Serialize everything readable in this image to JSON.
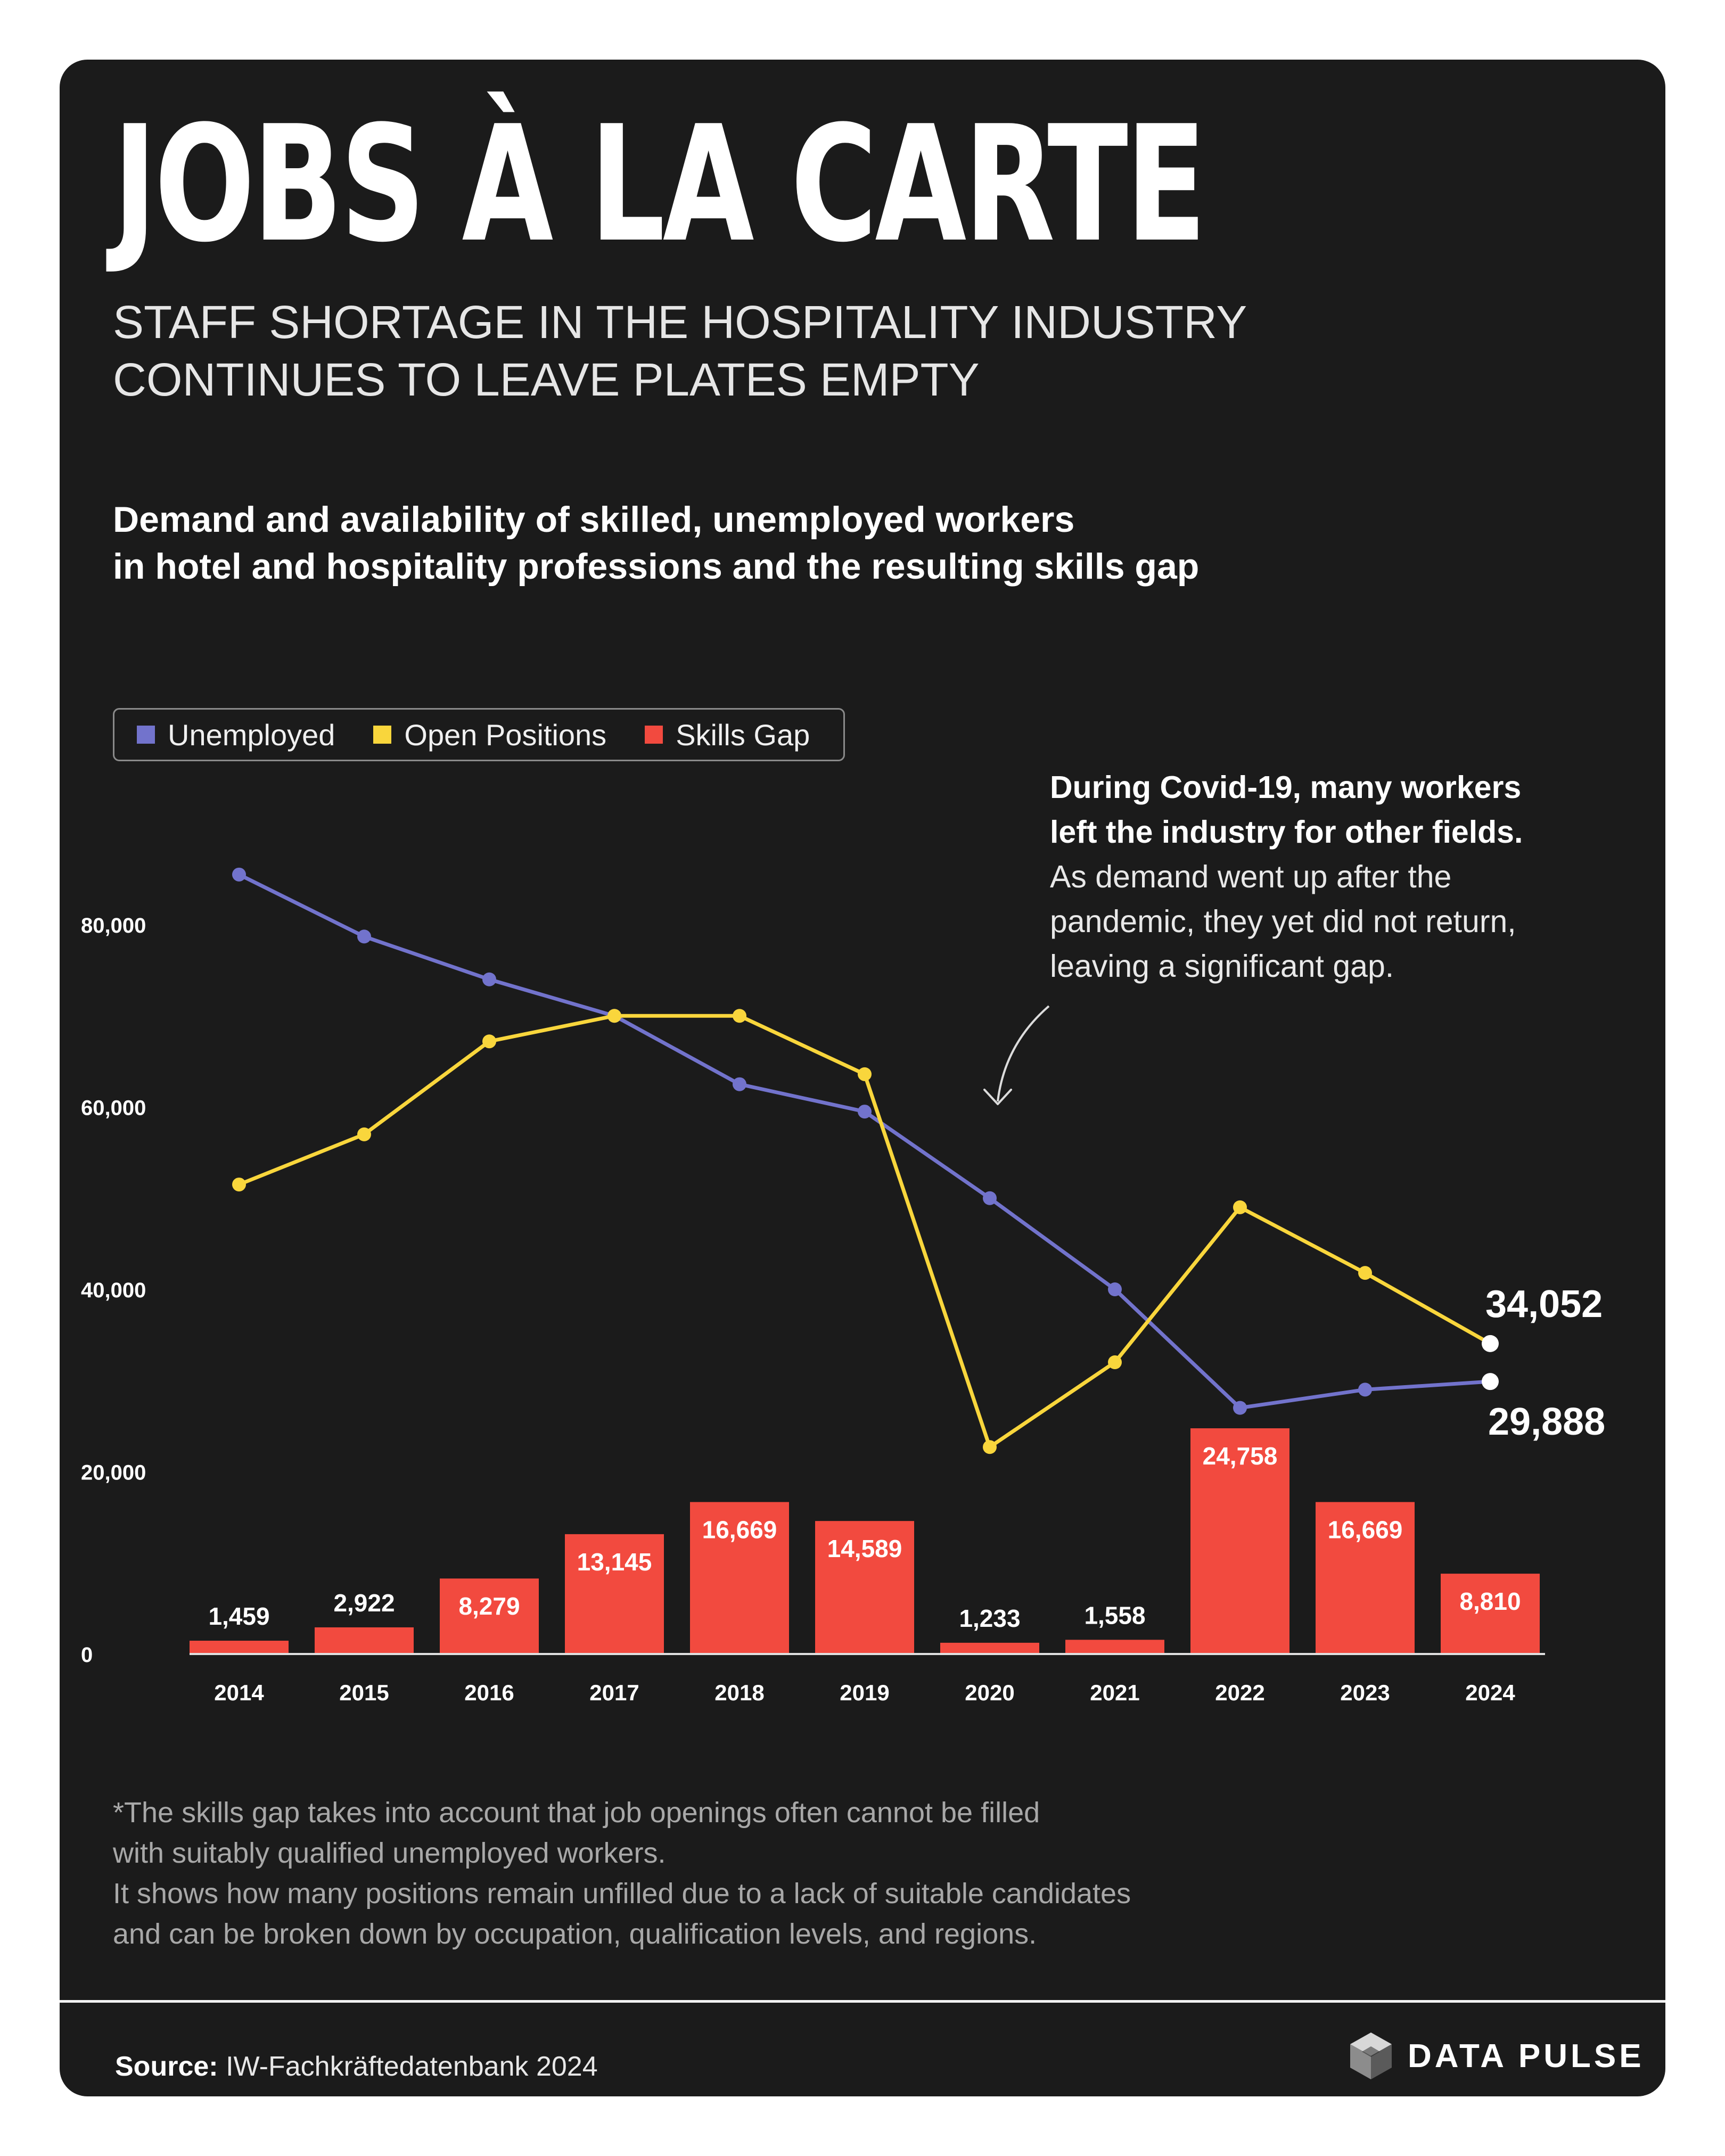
{
  "header": {
    "title": "JOBS À LA CARTE",
    "subtitle_lines": [
      "STAFF SHORTAGE IN THE HOSPITALITY INDUSTRY",
      "CONTINUES TO LEAVE PLATES EMPTY"
    ]
  },
  "colors": {
    "background": "#1b1b1b",
    "unemployed": "#7273cc",
    "open_positions": "#f9d63c",
    "skills_gap": "#f24a3f",
    "text": "#ffffff"
  },
  "chart_data": {
    "type": "bar+line",
    "title_lines": [
      "Demand and availability of skilled, unemployed workers",
      "in hotel and hospitality professions and the resulting skills gap"
    ],
    "categories": [
      "2014",
      "2015",
      "2016",
      "2017",
      "2018",
      "2019",
      "2020",
      "2021",
      "2022",
      "2023",
      "2024"
    ],
    "series": [
      {
        "name": "Unemployed",
        "type": "line",
        "values": [
          85500,
          78700,
          74000,
          70000,
          62500,
          59500,
          50000,
          40000,
          27000,
          29000,
          29888
        ]
      },
      {
        "name": "Open Positions",
        "type": "line",
        "values": [
          51500,
          57000,
          67200,
          70000,
          70000,
          63600,
          22700,
          32000,
          49000,
          41800,
          34052
        ]
      },
      {
        "name": "Skills Gap",
        "type": "bar",
        "values": [
          1459,
          2922,
          8279,
          13145,
          16669,
          14589,
          1233,
          1558,
          24758,
          16669,
          8810
        ],
        "labels": [
          "1,459",
          "2,922",
          "8,279",
          "13,145",
          "16,669",
          "14,589",
          "1,233",
          "1,558",
          "24,758",
          "16,669",
          "8,810"
        ]
      }
    ],
    "yticks": [
      0,
      20000,
      40000,
      60000,
      80000
    ],
    "ytick_labels": [
      "0",
      "20,000",
      "40,000",
      "60,000",
      "80,000"
    ],
    "ylim": [
      0,
      90000
    ],
    "end_labels": {
      "open_positions": "34,052",
      "unemployed": "29,888"
    },
    "legend": [
      "Unemployed",
      "Open Positions",
      "Skills Gap"
    ],
    "legend_position": "top-left",
    "annotation": {
      "lead_lines": [
        "During Covid-19, many workers",
        "left the industry for other fields."
      ],
      "body_lines": [
        "As demand went up after the",
        "pandemic, they yet did not return,",
        "leaving a significant gap."
      ]
    }
  },
  "footnote_lines": [
    "*The skills gap takes into account that job openings often cannot be filled",
    "with suitably qualified unemployed workers.",
    "It shows how many positions remain unfilled due to a lack of suitable candidates",
    "and can be broken down by occupation, qualification levels, and regions."
  ],
  "footer": {
    "source_label": "Source:",
    "source_text": "IW-Fachkräftedatenbank 2024",
    "brand": "DATA PULSE"
  }
}
